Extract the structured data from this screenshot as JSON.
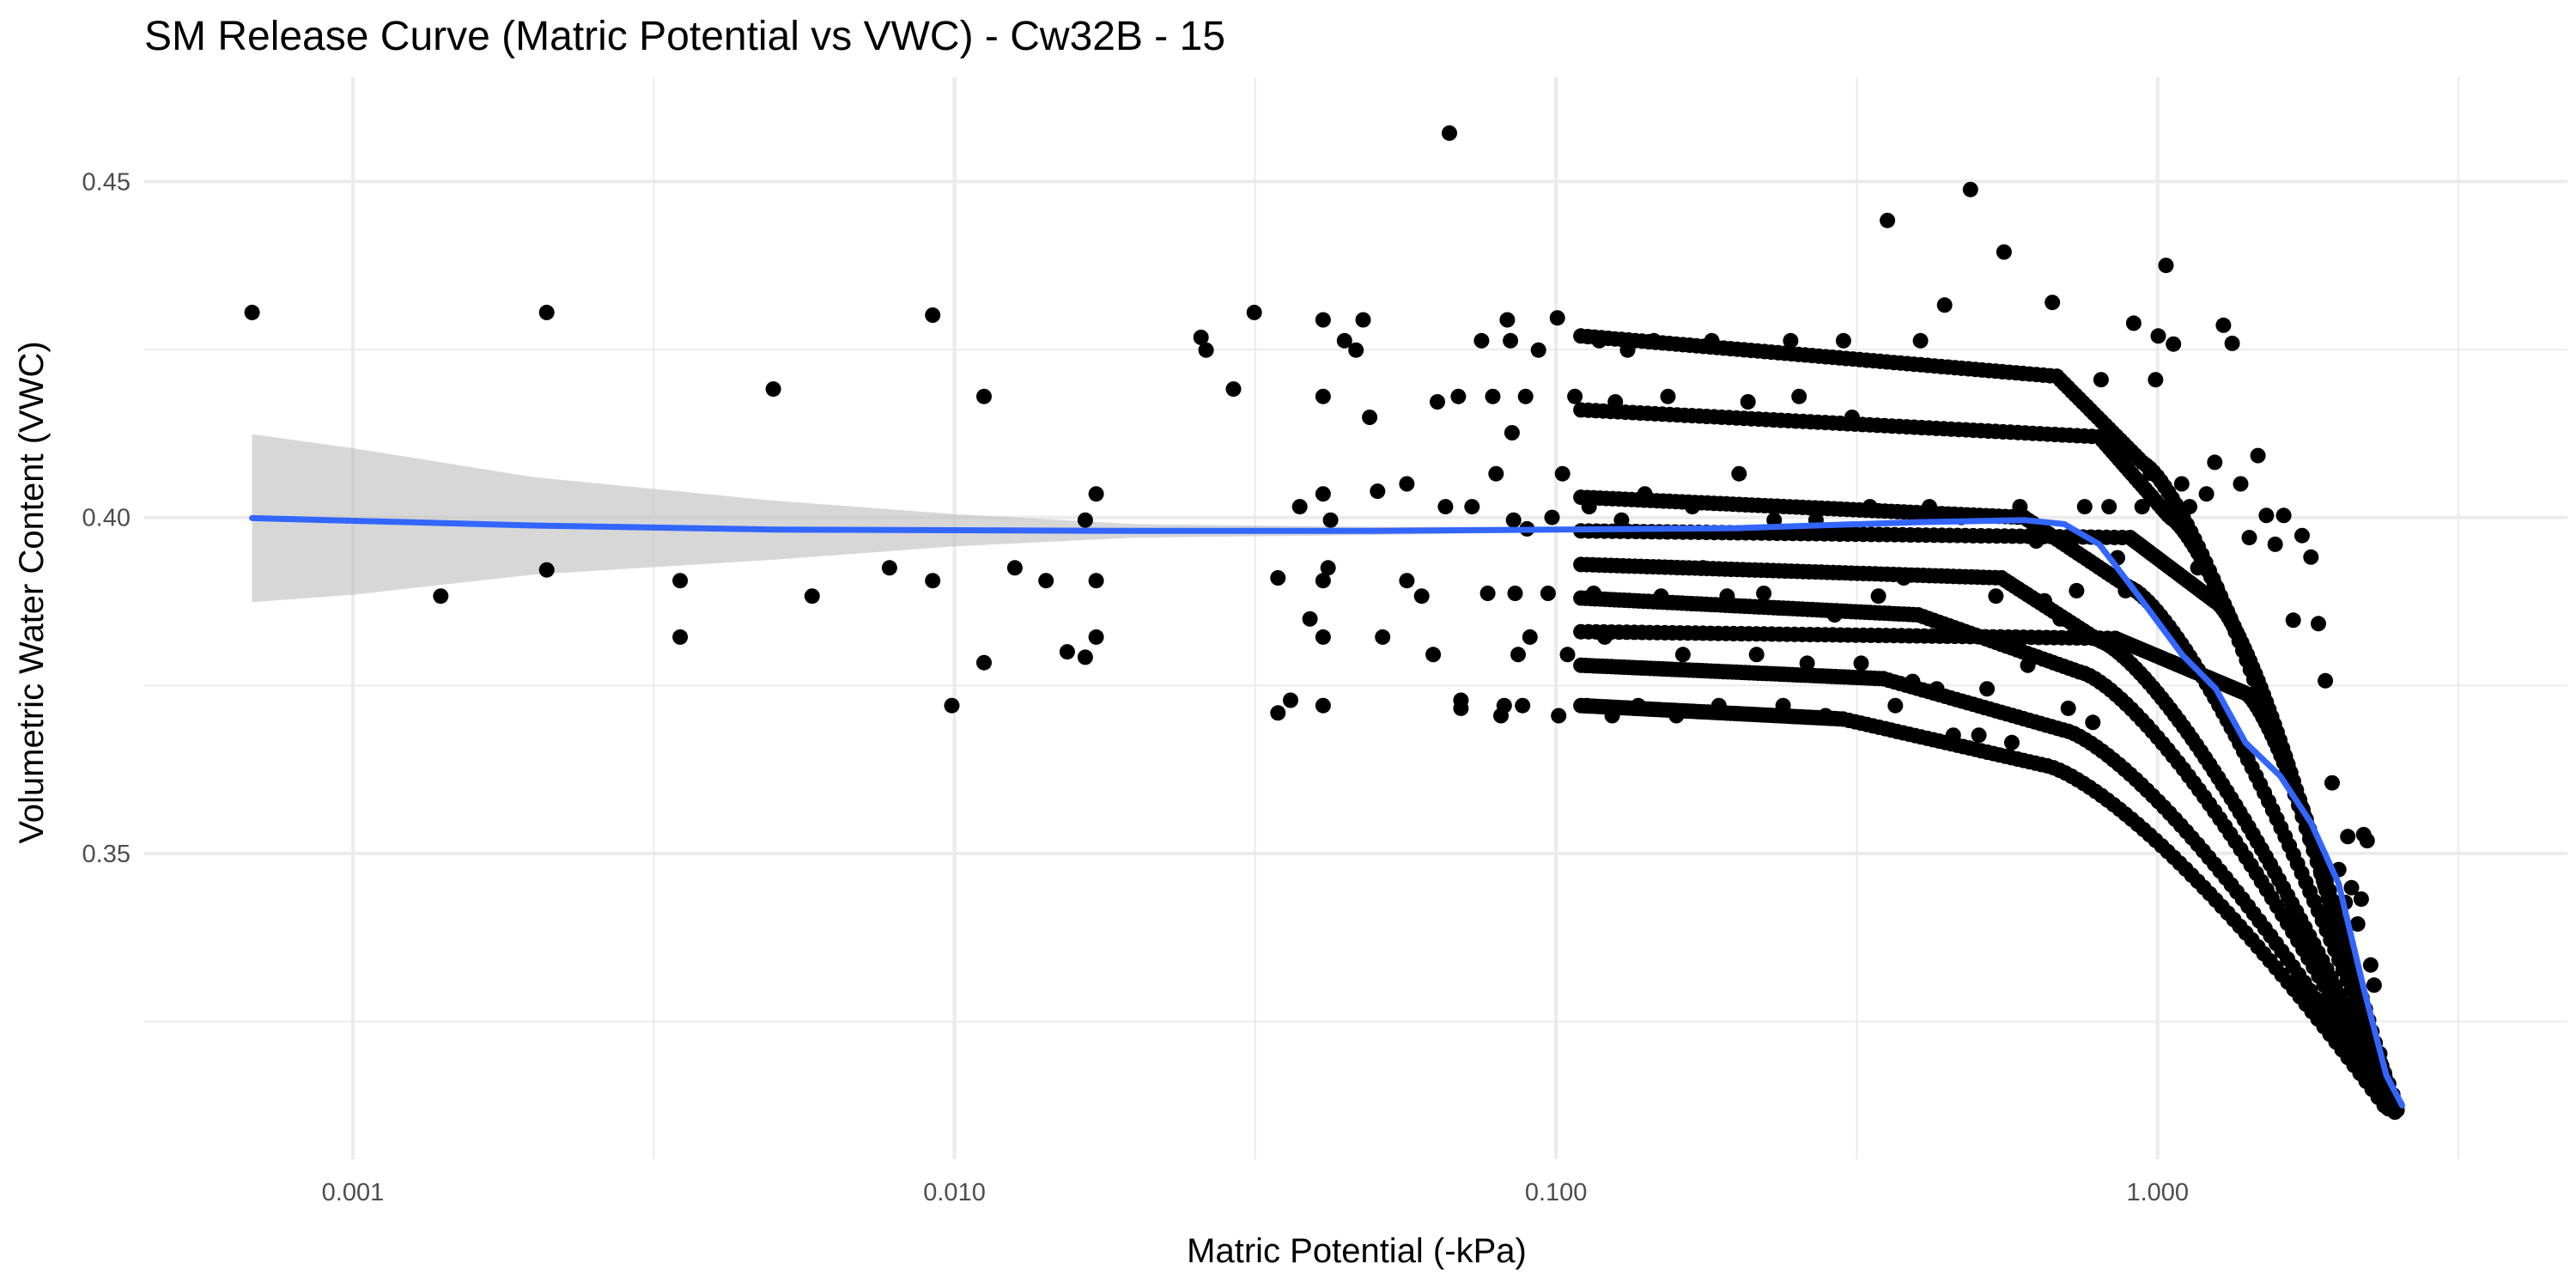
{
  "chart_data": {
    "type": "scatter",
    "title": "SM Release Curve (Matric Potential vs VWC) - Cw32B - 15",
    "xlabel": "Matric Potential (-kPa)",
    "ylabel": "Volumetric Water Content (VWC)",
    "x_scale": "log10",
    "xlim": [
      0.00045,
      4.8
    ],
    "ylim": [
      0.3045,
      0.4655
    ],
    "x_ticks": [
      0.001,
      0.01,
      0.1,
      1.0
    ],
    "x_tick_labels": [
      "0.001",
      "0.010",
      "0.100",
      "1.000"
    ],
    "y_ticks": [
      0.35,
      0.4,
      0.45
    ],
    "y_tick_labels": [
      "0.35",
      "0.40",
      "0.45"
    ],
    "grid": true,
    "legend": "none",
    "colors": {
      "points": "#000000",
      "smooth_line": "#3366ff",
      "confidence_band": "#bfbfbf",
      "grid": "#ebebeb"
    },
    "series": [
      {
        "kind": "points",
        "points": [
          [
            0.00068,
            0.4305
          ],
          [
            0.0014,
            0.3883
          ],
          [
            0.0021,
            0.4305
          ],
          [
            0.0021,
            0.3922
          ],
          [
            0.0035,
            0.3906
          ],
          [
            0.0035,
            0.3822
          ],
          [
            0.005,
            0.4191
          ],
          [
            0.0058,
            0.3883
          ],
          [
            0.0078,
            0.3925
          ],
          [
            0.0092,
            0.4301
          ],
          [
            0.0092,
            0.3906
          ],
          [
            0.0099,
            0.372
          ],
          [
            0.0112,
            0.418
          ],
          [
            0.0112,
            0.3784
          ],
          [
            0.0126,
            0.3925
          ],
          [
            0.0142,
            0.3906
          ],
          [
            0.0154,
            0.38
          ],
          [
            0.0165,
            0.3792
          ],
          [
            0.0165,
            0.3996
          ],
          [
            0.0172,
            0.4035
          ],
          [
            0.0172,
            0.3906
          ],
          [
            0.0172,
            0.3822
          ],
          [
            0.0257,
            0.4268
          ],
          [
            0.0262,
            0.4249
          ],
          [
            0.0291,
            0.4191
          ],
          [
            0.0315,
            0.4305
          ],
          [
            0.0345,
            0.391
          ],
          [
            0.0345,
            0.3709
          ],
          [
            0.0362,
            0.3728
          ],
          [
            0.0375,
            0.4016
          ],
          [
            0.039,
            0.3849
          ],
          [
            0.041,
            0.4294
          ],
          [
            0.041,
            0.418
          ],
          [
            0.041,
            0.4035
          ],
          [
            0.041,
            0.3906
          ],
          [
            0.041,
            0.3822
          ],
          [
            0.041,
            0.372
          ],
          [
            0.0418,
            0.3925
          ],
          [
            0.0422,
            0.3996
          ],
          [
            0.0445,
            0.4263
          ],
          [
            0.0465,
            0.4249
          ],
          [
            0.0478,
            0.4294
          ],
          [
            0.049,
            0.4149
          ],
          [
            0.0505,
            0.4039
          ],
          [
            0.0515,
            0.3822
          ],
          [
            0.0565,
            0.3906
          ],
          [
            0.0565,
            0.405
          ],
          [
            0.0598,
            0.3883
          ],
          [
            0.0625,
            0.3796
          ],
          [
            0.0635,
            0.4172
          ],
          [
            0.0655,
            0.4016
          ],
          [
            0.0665,
            0.4572
          ],
          [
            0.0688,
            0.418
          ],
          [
            0.0695,
            0.3728
          ],
          [
            0.0695,
            0.3716
          ],
          [
            0.0725,
            0.4016
          ],
          [
            0.0752,
            0.4263
          ],
          [
            0.077,
            0.3887
          ],
          [
            0.0785,
            0.418
          ],
          [
            0.0795,
            0.4065
          ],
          [
            0.081,
            0.3705
          ],
          [
            0.082,
            0.372
          ],
          [
            0.083,
            0.4294
          ],
          [
            0.084,
            0.4263
          ],
          [
            0.0845,
            0.4126
          ],
          [
            0.085,
            0.3996
          ],
          [
            0.0855,
            0.3887
          ],
          [
            0.0865,
            0.3796
          ],
          [
            0.088,
            0.372
          ],
          [
            0.089,
            0.418
          ],
          [
            0.0895,
            0.3983
          ],
          [
            0.0905,
            0.3822
          ],
          [
            0.0935,
            0.4249
          ],
          [
            0.097,
            0.3887
          ],
          [
            0.0985,
            0.4
          ],
          [
            0.1005,
            0.4297
          ],
          [
            0.101,
            0.3705
          ],
          [
            0.1025,
            0.4065
          ],
          [
            0.1045,
            0.3796
          ],
          [
            0.1075,
            0.418
          ],
          [
            0.1125,
            0.372
          ],
          [
            0.1135,
            0.4016
          ],
          [
            0.1155,
            0.3887
          ],
          [
            0.118,
            0.4263
          ],
          [
            0.1205,
            0.3822
          ],
          [
            0.124,
            0.3705
          ],
          [
            0.1255,
            0.4172
          ],
          [
            0.1285,
            0.3996
          ],
          [
            0.1315,
            0.4249
          ],
          [
            0.137,
            0.372
          ],
          [
            0.1405,
            0.4035
          ],
          [
            0.1455,
            0.4263
          ],
          [
            0.1495,
            0.3883
          ],
          [
            0.1535,
            0.418
          ],
          [
            0.1585,
            0.3705
          ],
          [
            0.1625,
            0.3796
          ],
          [
            0.1685,
            0.4016
          ],
          [
            0.1755,
            0.3925
          ],
          [
            0.1815,
            0.4263
          ],
          [
            0.1865,
            0.372
          ],
          [
            0.1925,
            0.3883
          ],
          [
            0.2015,
            0.4065
          ],
          [
            0.2085,
            0.4172
          ],
          [
            0.2155,
            0.3796
          ],
          [
            0.2215,
            0.3887
          ],
          [
            0.2305,
            0.3996
          ],
          [
            0.2385,
            0.372
          ],
          [
            0.2455,
            0.4263
          ],
          [
            0.2535,
            0.418
          ],
          [
            0.2615,
            0.3783
          ],
          [
            0.2705,
            0.3996
          ],
          [
            0.2805,
            0.3705
          ],
          [
            0.2905,
            0.3855
          ],
          [
            0.3005,
            0.4263
          ],
          [
            0.3105,
            0.4149
          ],
          [
            0.3215,
            0.3783
          ],
          [
            0.3325,
            0.4016
          ],
          [
            0.3435,
            0.3883
          ],
          [
            0.3555,
            0.4442
          ],
          [
            0.3665,
            0.372
          ],
          [
            0.3785,
            0.391
          ],
          [
            0.3915,
            0.3756
          ],
          [
            0.4035,
            0.4263
          ],
          [
            0.4175,
            0.4016
          ],
          [
            0.4295,
            0.3745
          ],
          [
            0.4425,
            0.4316
          ],
          [
            0.4575,
            0.3676
          ],
          [
            0.4715,
            0.4
          ],
          [
            0.4885,
            0.4488
          ],
          [
            0.5045,
            0.3676
          ],
          [
            0.5205,
            0.3745
          ],
          [
            0.5385,
            0.3883
          ],
          [
            0.5555,
            0.4395
          ],
          [
            0.5725,
            0.3665
          ],
          [
            0.5905,
            0.4016
          ],
          [
            0.6085,
            0.378
          ],
          [
            0.6285,
            0.3965
          ],
          [
            0.6485,
            0.3876
          ],
          [
            0.6685,
            0.432
          ],
          [
            0.6885,
            0.3849
          ],
          [
            0.7105,
            0.3716
          ],
          [
            0.7335,
            0.3891
          ],
          [
            0.7565,
            0.4016
          ],
          [
            0.7805,
            0.3695
          ],
          [
            0.8055,
            0.4205
          ],
          [
            0.8305,
            0.4016
          ],
          [
            0.8575,
            0.394
          ],
          [
            0.8845,
            0.3891
          ],
          [
            0.9125,
            0.4289
          ],
          [
            0.9425,
            0.4016
          ],
          [
            0.9725,
            0.4066
          ],
          [
            0.9925,
            0.4205
          ],
          [
            1.0025,
            0.427
          ],
          [
            1.0325,
            0.4375
          ],
          [
            1.0625,
            0.4258
          ],
          [
            1.0965,
            0.405
          ],
          [
            1.1305,
            0.4016
          ],
          [
            1.1665,
            0.3925
          ],
          [
            1.2055,
            0.4035
          ],
          [
            1.2445,
            0.4082
          ],
          [
            1.2865,
            0.4286
          ],
          [
            1.3305,
            0.4259
          ],
          [
            1.3745,
            0.405
          ],
          [
            1.4205,
            0.397
          ],
          [
            1.4685,
            0.4092
          ],
          [
            1.5165,
            0.4003
          ],
          [
            1.5685,
            0.396
          ],
          [
            1.6205,
            0.4003
          ],
          [
            1.6805,
            0.3847
          ],
          [
            1.7385,
            0.3973
          ],
          [
            1.7985,
            0.3941
          ],
          [
            1.8505,
            0.3842
          ],
          [
            1.9005,
            0.3757
          ],
          [
            1.9505,
            0.3605
          ],
          [
            2.0005,
            0.3476
          ],
          [
            2.0505,
            0.3427
          ],
          [
            2.0705,
            0.3525
          ],
          [
            2.1005,
            0.3449
          ],
          [
            2.1505,
            0.3395
          ],
          [
            2.1805,
            0.3432
          ],
          [
            2.2005,
            0.3528
          ],
          [
            2.2305,
            0.3519
          ],
          [
            2.2605,
            0.3334
          ],
          [
            2.2905,
            0.3304
          ],
          [
            2.3405,
            0.3202
          ],
          [
            2.3905,
            0.3145
          ],
          [
            2.4505,
            0.312
          ],
          [
            2.5005,
            0.3118
          ]
        ]
      },
      {
        "kind": "curves",
        "curves": [
          {
            "y0": 0.427,
            "x_end": 0.68,
            "y_end": 0.421,
            "x_drop": 0.95,
            "x_final": 2.45,
            "y_final": 0.312
          },
          {
            "y0": 0.416,
            "x_end": 0.8,
            "y_end": 0.412,
            "x_drop": 1.05,
            "x_final": 2.48,
            "y_final": 0.3115
          },
          {
            "y0": 0.403,
            "x_end": 0.6,
            "y_end": 0.4,
            "x_drop": 0.9,
            "x_final": 2.5,
            "y_final": 0.3125
          },
          {
            "y0": 0.398,
            "x_end": 0.9,
            "y_end": 0.397,
            "x_drop": 1.25,
            "x_final": 2.3,
            "y_final": 0.317
          },
          {
            "y0": 0.393,
            "x_end": 0.55,
            "y_end": 0.391,
            "x_drop": 0.8,
            "x_final": 2.45,
            "y_final": 0.313
          },
          {
            "y0": 0.388,
            "x_end": 0.4,
            "y_end": 0.3855,
            "x_drop": 0.75,
            "x_final": 2.4,
            "y_final": 0.3135
          },
          {
            "y0": 0.383,
            "x_end": 0.85,
            "y_end": 0.382,
            "x_drop": 1.4,
            "x_final": 2.4,
            "y_final": 0.314
          },
          {
            "y0": 0.378,
            "x_end": 0.35,
            "y_end": 0.376,
            "x_drop": 0.7,
            "x_final": 2.42,
            "y_final": 0.312
          },
          {
            "y0": 0.372,
            "x_end": 0.3,
            "y_end": 0.37,
            "x_drop": 0.65,
            "x_final": 2.38,
            "y_final": 0.3125
          }
        ]
      }
    ],
    "smooth_fit": [
      [
        0.00068,
        0.3999
      ],
      [
        0.001,
        0.3995
      ],
      [
        0.002,
        0.3988
      ],
      [
        0.005,
        0.3982
      ],
      [
        0.01,
        0.3981
      ],
      [
        0.02,
        0.398
      ],
      [
        0.05,
        0.398
      ],
      [
        0.1,
        0.3982
      ],
      [
        0.2,
        0.3984
      ],
      [
        0.4,
        0.3993
      ],
      [
        0.6,
        0.3996
      ],
      [
        0.7,
        0.399
      ],
      [
        0.8,
        0.396
      ],
      [
        0.9,
        0.39
      ],
      [
        1.0,
        0.3845
      ],
      [
        1.1,
        0.3795
      ],
      [
        1.25,
        0.3745
      ],
      [
        1.4,
        0.3665
      ],
      [
        1.6,
        0.3615
      ],
      [
        1.8,
        0.3545
      ],
      [
        2.0,
        0.3455
      ],
      [
        2.2,
        0.33
      ],
      [
        2.4,
        0.317
      ],
      [
        2.55,
        0.3125
      ]
    ],
    "confidence_band": [
      [
        0.00068,
        0.4124,
        0.3874
      ],
      [
        0.001,
        0.4103,
        0.3885
      ],
      [
        0.002,
        0.406,
        0.3915
      ],
      [
        0.005,
        0.4025,
        0.3937
      ],
      [
        0.01,
        0.4005,
        0.3957
      ],
      [
        0.02,
        0.399,
        0.397
      ],
      [
        0.05,
        0.3986,
        0.3974
      ],
      [
        0.1,
        0.3986,
        0.3978
      ],
      [
        0.2,
        0.3988,
        0.398
      ],
      [
        0.4,
        0.3997,
        0.3989
      ],
      [
        0.6,
        0.4,
        0.3992
      ],
      [
        0.7,
        0.3994,
        0.3986
      ],
      [
        0.8,
        0.3965,
        0.3955
      ],
      [
        0.9,
        0.3905,
        0.3895
      ],
      [
        1.0,
        0.385,
        0.384
      ],
      [
        1.1,
        0.38,
        0.379
      ],
      [
        1.25,
        0.375,
        0.374
      ],
      [
        1.4,
        0.367,
        0.366
      ],
      [
        1.6,
        0.362,
        0.361
      ],
      [
        1.8,
        0.355,
        0.354
      ],
      [
        2.0,
        0.3461,
        0.3449
      ],
      [
        2.2,
        0.3307,
        0.3293
      ],
      [
        2.4,
        0.3178,
        0.3162
      ],
      [
        2.55,
        0.3135,
        0.3115
      ]
    ]
  }
}
